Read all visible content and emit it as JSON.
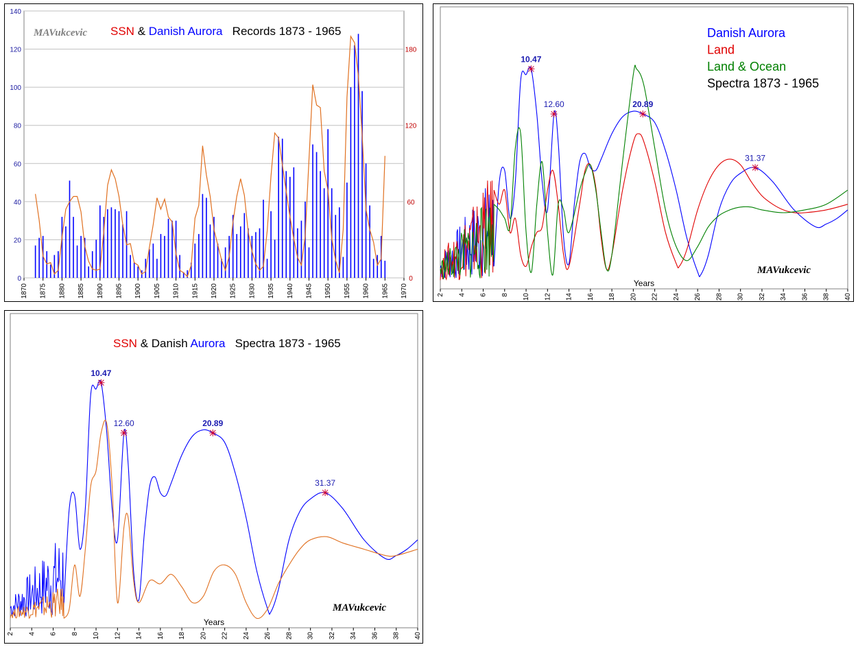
{
  "colors": {
    "red": "#e00000",
    "blue": "#0000ff",
    "darkblue": "#2233cc",
    "black": "#000000",
    "orange": "#e07020",
    "green": "#008000",
    "grey": "#808080",
    "grid": "#c0c0c0"
  },
  "chart_data": [
    {
      "type": "bar",
      "title_parts": [
        {
          "text": "SSN",
          "color": "#e00000"
        },
        {
          "text": " & ",
          "color": "#000000"
        },
        {
          "text": "Danish Aurora",
          "color": "#0000ff"
        },
        {
          "text": "   Records 1873 - 1965",
          "color": "#000000"
        }
      ],
      "signature": "MAVukcevic",
      "xlim": [
        1870,
        1970
      ],
      "xticks": [
        "1870",
        "1875",
        "1880",
        "1885",
        "1890",
        "1895",
        "1900",
        "1905",
        "1910",
        "1915",
        "1920",
        "1925",
        "1930",
        "1935",
        "1940",
        "1945",
        "1950",
        "1955",
        "1960",
        "1965",
        "1970"
      ],
      "ylim_left": [
        0,
        140
      ],
      "yticks_left": [
        "0",
        "20",
        "40",
        "60",
        "80",
        "100",
        "120",
        "140"
      ],
      "ylim_right": [
        0,
        210
      ],
      "yticks_right": [
        "0",
        "60",
        "120",
        "180"
      ],
      "grid": true,
      "aurora_bars": {
        "name": "Danish Aurora",
        "axis": "left",
        "color": "#0000ff",
        "x": [
          1873,
          1874,
          1875,
          1876,
          1877,
          1878,
          1879,
          1880,
          1881,
          1882,
          1883,
          1884,
          1885,
          1886,
          1887,
          1888,
          1889,
          1890,
          1891,
          1892,
          1893,
          1894,
          1895,
          1896,
          1897,
          1898,
          1899,
          1900,
          1901,
          1902,
          1903,
          1904,
          1905,
          1906,
          1907,
          1908,
          1909,
          1910,
          1911,
          1912,
          1913,
          1914,
          1915,
          1916,
          1917,
          1918,
          1919,
          1920,
          1921,
          1922,
          1923,
          1924,
          1925,
          1926,
          1927,
          1928,
          1929,
          1930,
          1931,
          1932,
          1933,
          1934,
          1935,
          1936,
          1937,
          1938,
          1939,
          1940,
          1941,
          1942,
          1943,
          1944,
          1945,
          1946,
          1947,
          1948,
          1949,
          1950,
          1951,
          1952,
          1953,
          1954,
          1955,
          1956,
          1957,
          1958,
          1959,
          1960,
          1961,
          1962,
          1963,
          1964,
          1965
        ],
        "values": [
          17,
          21,
          22,
          14,
          7,
          12,
          14,
          32,
          27,
          51,
          32,
          17,
          22,
          21,
          6,
          14,
          20,
          38,
          32,
          36,
          37,
          36,
          35,
          28,
          35,
          12,
          8,
          6,
          4,
          10,
          15,
          18,
          10,
          23,
          22,
          31,
          30,
          30,
          12,
          3,
          4,
          8,
          18,
          23,
          44,
          42,
          28,
          32,
          18,
          10,
          16,
          22,
          33,
          23,
          27,
          34,
          26,
          22,
          24,
          26,
          41,
          10,
          35,
          20,
          74,
          73,
          56,
          53,
          58,
          26,
          30,
          40,
          16,
          70,
          66,
          56,
          47,
          78,
          47,
          33,
          37,
          11,
          50,
          100,
          122,
          128,
          98,
          60,
          38,
          10,
          12,
          22,
          9
        ]
      },
      "ssn_line": {
        "name": "SSN",
        "axis": "right",
        "color": "#e07020",
        "x": [
          1873,
          1874,
          1875,
          1876,
          1877,
          1878,
          1879,
          1880,
          1881,
          1882,
          1883,
          1884,
          1885,
          1886,
          1887,
          1888,
          1889,
          1890,
          1891,
          1892,
          1893,
          1894,
          1895,
          1896,
          1897,
          1898,
          1899,
          1900,
          1901,
          1902,
          1903,
          1904,
          1905,
          1906,
          1907,
          1908,
          1909,
          1910,
          1911,
          1912,
          1913,
          1914,
          1915,
          1916,
          1917,
          1918,
          1919,
          1920,
          1921,
          1922,
          1923,
          1924,
          1925,
          1926,
          1927,
          1928,
          1929,
          1930,
          1931,
          1932,
          1933,
          1934,
          1935,
          1936,
          1937,
          1938,
          1939,
          1940,
          1941,
          1942,
          1943,
          1944,
          1945,
          1946,
          1947,
          1948,
          1949,
          1950,
          1951,
          1952,
          1953,
          1954,
          1955,
          1956,
          1957,
          1958,
          1959,
          1960,
          1961,
          1962,
          1963,
          1964,
          1965
        ],
        "values": [
          66,
          45,
          17,
          11,
          12,
          3,
          6,
          32,
          54,
          60,
          64,
          64,
          52,
          25,
          13,
          7,
          6,
          7,
          36,
          73,
          85,
          78,
          64,
          42,
          26,
          27,
          12,
          10,
          3,
          5,
          24,
          42,
          63,
          54,
          62,
          48,
          44,
          19,
          6,
          4,
          1,
          10,
          47,
          57,
          104,
          81,
          64,
          38,
          26,
          14,
          6,
          17,
          44,
          64,
          78,
          65,
          36,
          21,
          11,
          6,
          9,
          37,
          80,
          114,
          110,
          89,
          68,
          48,
          31,
          16,
          10,
          33,
          93,
          152,
          136,
          134,
          84,
          69,
          31,
          14,
          4,
          38,
          142,
          190,
          185,
          159,
          112,
          54,
          38,
          28,
          10,
          15,
          96
        ]
      }
    },
    {
      "type": "line",
      "legend": [
        {
          "text": "Danish Aurora",
          "color": "#0000ff"
        },
        {
          "text": "Land",
          "color": "#e00000"
        },
        {
          "text": "Land & Ocean",
          "color": "#008000"
        },
        {
          "text": "Spectra 1873 - 1965",
          "color": "#000000"
        }
      ],
      "xlabel": "Years",
      "signature": "MAVukcevic",
      "xlim": [
        2,
        40
      ],
      "xticks": [
        "2",
        "4",
        "6",
        "8",
        "10",
        "12",
        "14",
        "16",
        "18",
        "20",
        "22",
        "24",
        "26",
        "28",
        "30",
        "32",
        "34",
        "36",
        "38",
        "40"
      ],
      "peaks": [
        {
          "x": 10.47,
          "label": "10.47",
          "bold": true
        },
        {
          "x": 12.6,
          "label": "12.60",
          "bold": false
        },
        {
          "x": 20.89,
          "label": "20.89",
          "bold": true
        },
        {
          "x": 31.37,
          "label": "31.37",
          "bold": false
        }
      ],
      "series": [
        {
          "name": "Danish Aurora",
          "color": "#0000ff",
          "x": [
            7,
            7.5,
            8,
            8.5,
            9,
            9.5,
            10,
            10.47,
            11,
            11.5,
            12,
            12.6,
            13,
            13.5,
            14,
            14.5,
            15,
            15.5,
            16,
            16.5,
            17,
            18,
            19,
            20,
            20.89,
            22,
            23,
            24,
            25,
            26,
            26.3,
            27,
            28,
            29,
            30,
            31.37,
            33,
            35,
            37,
            38,
            39,
            40
          ],
          "y": [
            0.08,
            0.38,
            0.42,
            0.25,
            0.38,
            0.74,
            0.76,
            0.78,
            0.62,
            0.38,
            0.28,
            0.62,
            0.52,
            0.18,
            0.09,
            0.3,
            0.45,
            0.48,
            0.43,
            0.42,
            0.46,
            0.55,
            0.61,
            0.63,
            0.62,
            0.59,
            0.49,
            0.35,
            0.18,
            0.06,
            0.05,
            0.12,
            0.28,
            0.37,
            0.41,
            0.43,
            0.38,
            0.28,
            0.22,
            0.23,
            0.25,
            0.28
          ]
        },
        {
          "name": "Land",
          "color": "#e00000",
          "x": [
            7,
            7.5,
            8,
            8.5,
            9,
            9.5,
            10,
            10.5,
            11,
            11.5,
            12,
            12.5,
            13,
            13.5,
            14,
            15,
            15.5,
            16,
            16.5,
            17,
            17.5,
            18,
            19,
            20,
            20.5,
            21,
            22,
            23,
            24,
            24.3,
            25,
            26,
            27,
            28,
            29,
            30,
            31,
            32,
            33,
            34,
            35,
            36,
            38,
            40
          ],
          "y": [
            0.35,
            0.3,
            0.35,
            0.2,
            0.25,
            0.12,
            0.08,
            0.15,
            0.2,
            0.22,
            0.35,
            0.42,
            0.3,
            0.12,
            0.08,
            0.3,
            0.42,
            0.44,
            0.36,
            0.18,
            0.07,
            0.12,
            0.35,
            0.52,
            0.55,
            0.52,
            0.38,
            0.2,
            0.09,
            0.08,
            0.14,
            0.28,
            0.38,
            0.44,
            0.46,
            0.44,
            0.38,
            0.33,
            0.3,
            0.28,
            0.27,
            0.27,
            0.28,
            0.3
          ]
        },
        {
          "name": "Land & Ocean",
          "color": "#008000",
          "x": [
            7,
            7.5,
            8,
            8.5,
            9,
            9.5,
            10,
            10.5,
            11,
            11.5,
            12,
            12.5,
            13,
            13.5,
            14,
            15,
            15.5,
            16,
            16.5,
            17,
            17.5,
            18,
            19,
            20,
            20.3,
            21,
            22,
            23,
            24,
            25,
            26,
            27,
            28,
            29,
            30,
            31,
            32,
            34,
            36,
            38,
            40
          ],
          "y": [
            0.3,
            0.28,
            0.25,
            0.22,
            0.5,
            0.55,
            0.2,
            0.06,
            0.3,
            0.45,
            0.2,
            0.05,
            0.3,
            0.28,
            0.2,
            0.35,
            0.41,
            0.44,
            0.35,
            0.2,
            0.07,
            0.12,
            0.45,
            0.76,
            0.78,
            0.72,
            0.5,
            0.28,
            0.15,
            0.1,
            0.15,
            0.22,
            0.26,
            0.28,
            0.29,
            0.29,
            0.28,
            0.27,
            0.28,
            0.3,
            0.35
          ]
        }
      ]
    },
    {
      "type": "line",
      "title_parts": [
        {
          "text": "SSN",
          "color": "#e00000"
        },
        {
          "text": " & ",
          "color": "#000000"
        },
        {
          "text": "Danish ",
          "color": "#000000"
        },
        {
          "text": "Aurora",
          "color": "#0000ff"
        },
        {
          "text": "   Spectra 1873 - 1965",
          "color": "#000000"
        }
      ],
      "xlabel": "Years",
      "signature": "MAVukcevic",
      "xlim": [
        2,
        40
      ],
      "xticks": [
        "2",
        "4",
        "6",
        "8",
        "10",
        "12",
        "14",
        "16",
        "18",
        "20",
        "22",
        "24",
        "26",
        "28",
        "30",
        "32",
        "34",
        "36",
        "38",
        "40"
      ],
      "peaks": [
        {
          "x": 10.47,
          "label": "10.47",
          "bold": true
        },
        {
          "x": 12.6,
          "label": "12.60",
          "bold": false
        },
        {
          "x": 20.89,
          "label": "20.89",
          "bold": true
        },
        {
          "x": 31.37,
          "label": "31.37",
          "bold": false
        }
      ],
      "series": [
        {
          "name": "Danish Aurora",
          "color": "#0000ff",
          "x": [
            7,
            7.5,
            8,
            8.5,
            9,
            9.5,
            10,
            10.47,
            11,
            11.5,
            12,
            12.6,
            13,
            13.5,
            14,
            14.5,
            15,
            15.5,
            16,
            16.5,
            17,
            18,
            19,
            20,
            20.89,
            22,
            23,
            24,
            25,
            26,
            26.3,
            27,
            28,
            29,
            30,
            31.37,
            33,
            35,
            37,
            38,
            39,
            40
          ],
          "y": [
            0.08,
            0.38,
            0.42,
            0.25,
            0.38,
            0.74,
            0.76,
            0.78,
            0.62,
            0.38,
            0.28,
            0.62,
            0.52,
            0.18,
            0.09,
            0.3,
            0.45,
            0.48,
            0.43,
            0.42,
            0.46,
            0.55,
            0.61,
            0.63,
            0.62,
            0.59,
            0.49,
            0.35,
            0.18,
            0.06,
            0.05,
            0.12,
            0.28,
            0.37,
            0.41,
            0.43,
            0.38,
            0.28,
            0.22,
            0.23,
            0.25,
            0.28
          ]
        },
        {
          "name": "SSN",
          "color": "#e07020",
          "x": [
            7,
            7.5,
            8,
            8.5,
            9,
            9.5,
            10,
            10.47,
            11,
            11.5,
            12,
            12.6,
            13,
            13.5,
            14,
            15,
            16,
            17,
            18,
            19,
            20,
            21,
            22,
            23,
            24,
            25,
            26,
            27,
            28,
            29,
            30,
            31.5,
            33,
            35,
            37,
            38,
            40
          ],
          "y": [
            0.03,
            0.06,
            0.2,
            0.1,
            0.25,
            0.45,
            0.5,
            0.62,
            0.65,
            0.45,
            0.08,
            0.32,
            0.35,
            0.15,
            0.08,
            0.15,
            0.14,
            0.17,
            0.13,
            0.08,
            0.1,
            0.18,
            0.2,
            0.17,
            0.08,
            0.03,
            0.06,
            0.14,
            0.2,
            0.25,
            0.28,
            0.29,
            0.27,
            0.25,
            0.23,
            0.23,
            0.25
          ]
        }
      ]
    }
  ]
}
